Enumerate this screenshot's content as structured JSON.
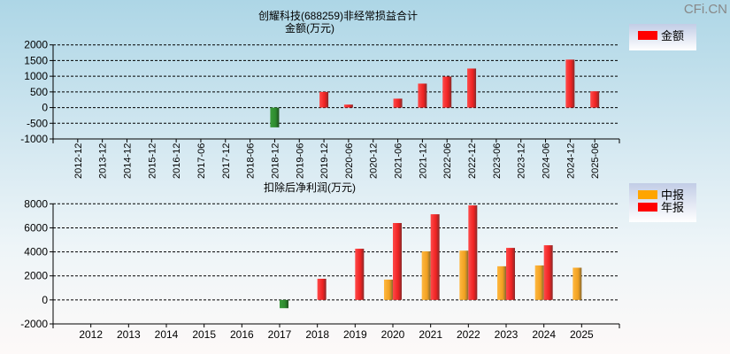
{
  "watermark": "CFi.CN",
  "chart_data": [
    {
      "type": "bar",
      "title": "创耀科技(688259)非经常损益合计",
      "ylabel": "金额(万元)",
      "ylim": [
        -1000,
        2000
      ],
      "yticks": [
        2000,
        1500,
        1000,
        500,
        0,
        -500,
        -1000
      ],
      "grid": true,
      "legend_position": "top-right",
      "categories": [
        "2012-12",
        "2013-12",
        "2014-12",
        "2015-12",
        "2016-12",
        "2017-06",
        "2017-12",
        "2018-06",
        "2018-12",
        "2019-06",
        "2019-12",
        "2020-06",
        "2020-12",
        "2021-06",
        "2021-12",
        "2022-06",
        "2022-12",
        "2023-06",
        "2023-12",
        "2024-06",
        "2024-12",
        "2025-06"
      ],
      "series": [
        {
          "name": "金额",
          "color": "#ff0000",
          "negative_color": "#2e8b2e",
          "values": [
            null,
            null,
            null,
            null,
            null,
            null,
            null,
            null,
            -630,
            null,
            500,
            95,
            null,
            285,
            765,
            990,
            1245,
            null,
            null,
            null,
            1530,
            520
          ]
        }
      ]
    },
    {
      "type": "bar",
      "title": "扣除后净利润(万元)",
      "ylim": [
        -2000,
        8000
      ],
      "yticks": [
        8000,
        6000,
        4000,
        2000,
        0,
        -2000
      ],
      "grid": true,
      "legend_position": "top-right",
      "categories": [
        "2012",
        "2013",
        "2014",
        "2015",
        "2016",
        "2017",
        "2018",
        "2019",
        "2020",
        "2021",
        "2022",
        "2023",
        "2024",
        "2025"
      ],
      "series": [
        {
          "name": "中报",
          "color": "#ffa500",
          "values": [
            null,
            null,
            null,
            null,
            null,
            null,
            null,
            null,
            1690,
            4040,
            4100,
            2800,
            2870,
            2680
          ]
        },
        {
          "name": "年报",
          "color": "#ff0000",
          "negative_color": "#2e8b2e",
          "values": [
            null,
            null,
            null,
            null,
            null,
            -690,
            1760,
            4260,
            6400,
            7130,
            7870,
            4330,
            4550,
            null
          ]
        }
      ]
    }
  ]
}
